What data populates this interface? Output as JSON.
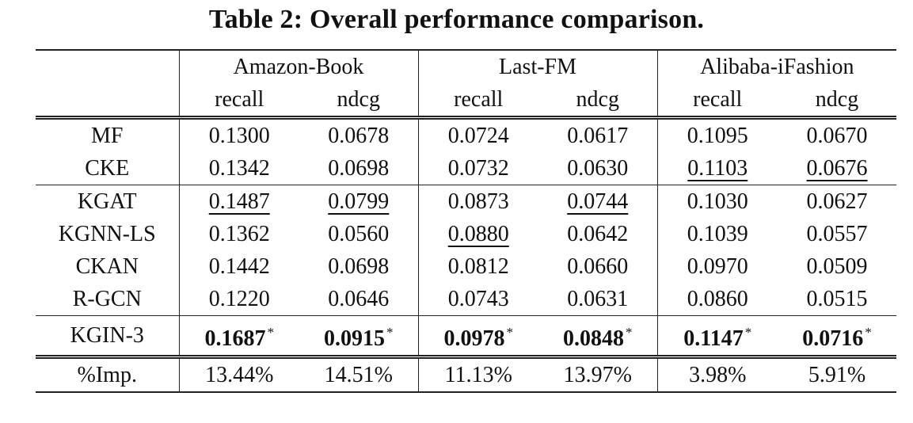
{
  "caption": "Table 2: Overall performance comparison.",
  "groups": [
    "Amazon-Book",
    "Last-FM",
    "Alibaba-iFashion"
  ],
  "metrics": [
    "recall",
    "ndcg",
    "recall",
    "ndcg",
    "recall",
    "ndcg"
  ],
  "rows": [
    {
      "model": "MF",
      "values": [
        "0.1300",
        "0.0678",
        "0.0724",
        "0.0617",
        "0.1095",
        "0.0670"
      ]
    },
    {
      "model": "CKE",
      "values": [
        "0.1342",
        "0.0698",
        "0.0732",
        "0.0630",
        "0.1103",
        "0.0676"
      ]
    },
    {
      "model": "KGAT",
      "values": [
        "0.1487",
        "0.0799",
        "0.0873",
        "0.0744",
        "0.1030",
        "0.0627"
      ]
    },
    {
      "model": "KGNN-LS",
      "values": [
        "0.1362",
        "0.0560",
        "0.0880",
        "0.0642",
        "0.1039",
        "0.0557"
      ]
    },
    {
      "model": "CKAN",
      "values": [
        "0.1442",
        "0.0698",
        "0.0812",
        "0.0660",
        "0.0970",
        "0.0509"
      ]
    },
    {
      "model": "R-GCN",
      "values": [
        "0.1220",
        "0.0646",
        "0.0743",
        "0.0631",
        "0.0860",
        "0.0515"
      ]
    }
  ],
  "best": {
    "model": "KGIN-3",
    "values": [
      "0.1687",
      "0.0915",
      "0.0978",
      "0.0848",
      "0.1147",
      "0.0716"
    ],
    "marker": "*"
  },
  "improvement": {
    "label": "%Imp.",
    "values": [
      "13.44%",
      "14.51%",
      "11.13%",
      "13.97%",
      "3.98%",
      "5.91%"
    ]
  }
}
